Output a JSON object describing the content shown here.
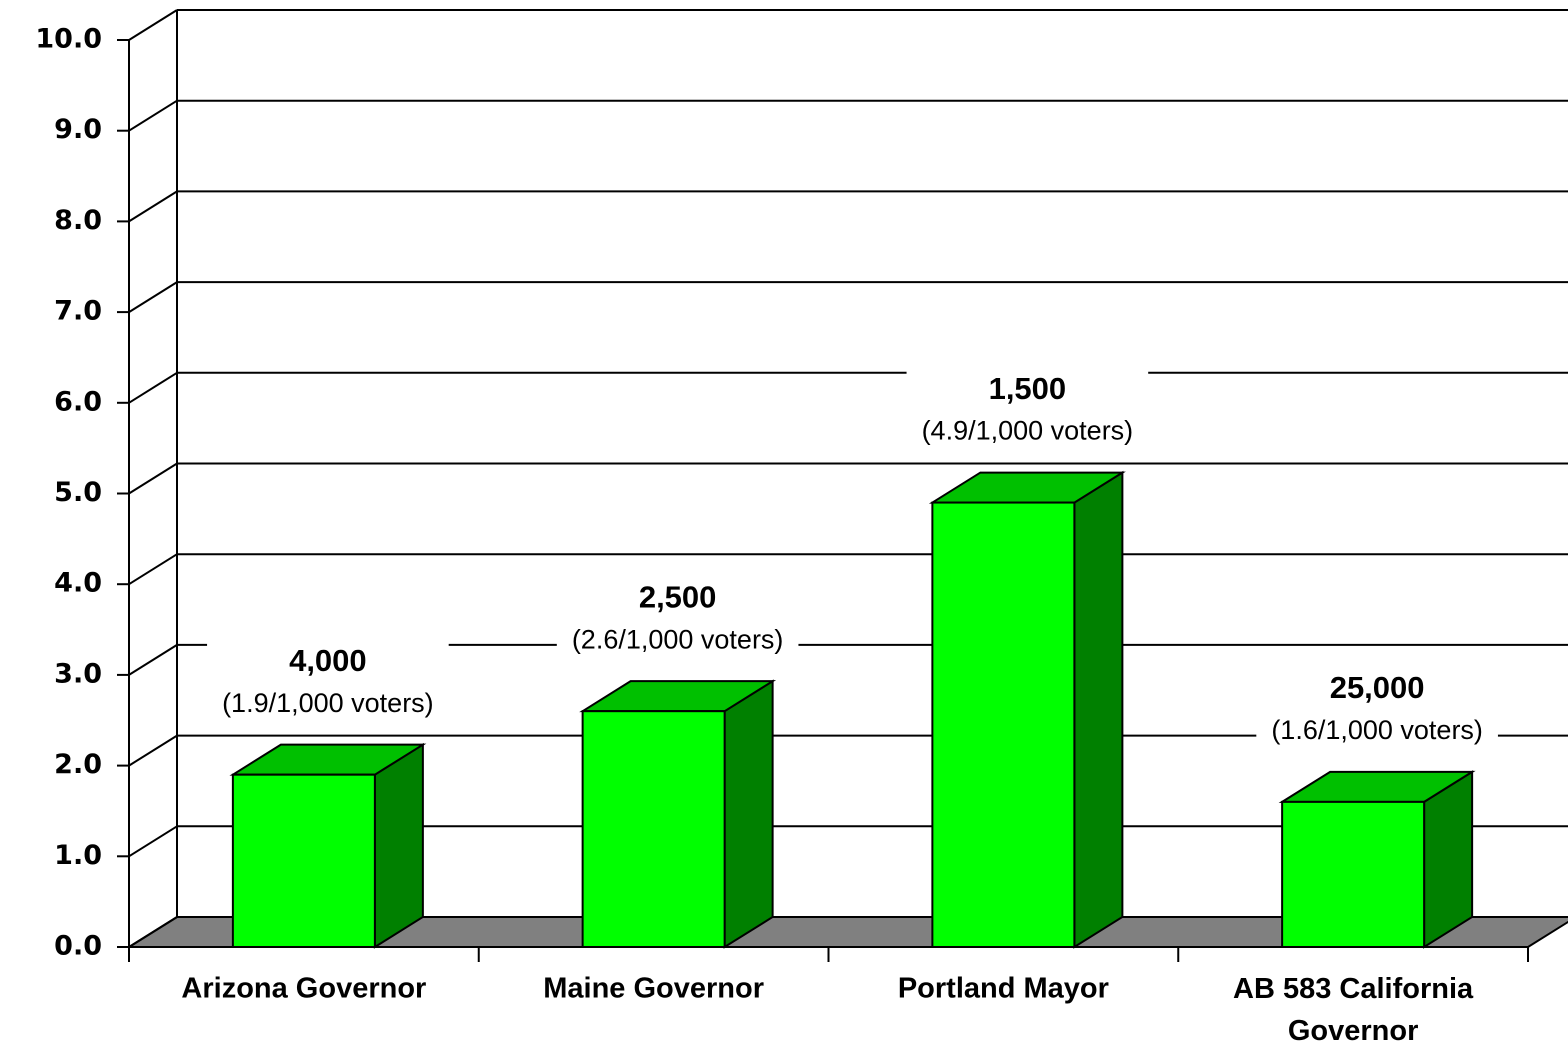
{
  "chart_data": {
    "type": "bar3d",
    "categories": [
      "Arizona Governor",
      "Maine Governor",
      "Portland Mayor",
      "AB 583 California Governor"
    ],
    "values": [
      1.9,
      2.6,
      4.9,
      1.6
    ],
    "value_labels": [
      "(1.9/1,000 voters)",
      "(2.6/1,000 voters)",
      "(4.9/1,000 voters)",
      "(1.6/1,000 voters)"
    ],
    "count_labels": [
      "4,000",
      "2,500",
      "1,500",
      "25,000"
    ],
    "color": "#00ff00",
    "top_color": "#00c000",
    "side_color": "#008000",
    "floor_color": "#808080",
    "ylim": [
      0,
      10
    ],
    "yticks": [
      {
        "value": 0,
        "label": "0.0"
      },
      {
        "value": 1,
        "label": "1.0"
      },
      {
        "value": 2,
        "label": "2.0"
      },
      {
        "value": 3,
        "label": "3.0"
      },
      {
        "value": 4,
        "label": "4.0"
      },
      {
        "value": 5,
        "label": "5.0"
      },
      {
        "value": 6,
        "label": "6.0"
      },
      {
        "value": 7,
        "label": "7.0"
      },
      {
        "value": 8,
        "label": "8.0"
      },
      {
        "value": 9,
        "label": "9.0"
      },
      {
        "value": 10,
        "label": "10.0"
      }
    ],
    "grid": true
  }
}
